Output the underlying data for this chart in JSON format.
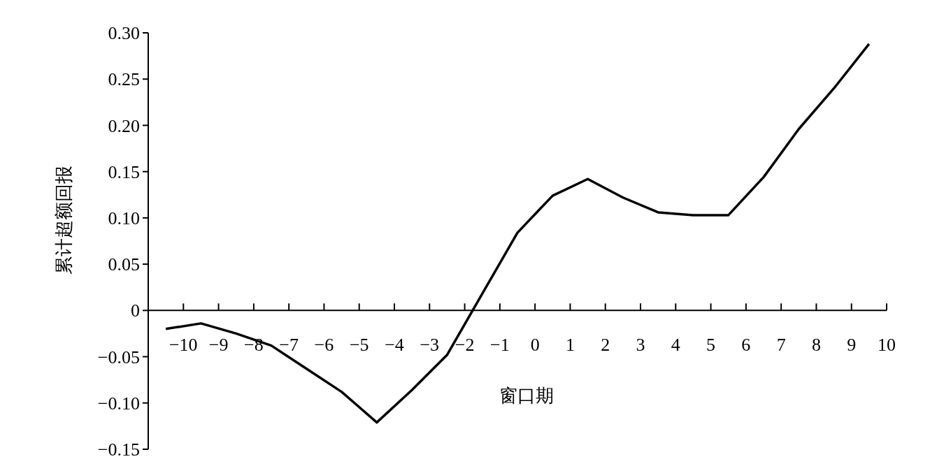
{
  "chart_data": {
    "type": "line",
    "xlabel": "窗口期",
    "ylabel": "累计超额回报",
    "x": [
      -10.5,
      -9.5,
      -8.5,
      -7.5,
      -6.5,
      -5.5,
      -4.5,
      -3.5,
      -2.5,
      -1.5,
      -0.5,
      0.5,
      1.5,
      2.5,
      3.5,
      4.5,
      5.5,
      6.5,
      7.5,
      8.5,
      9.5
    ],
    "series": [
      {
        "color": "#000000",
        "values": [
          -0.02,
          -0.014,
          -0.025,
          -0.038,
          -0.063,
          -0.088,
          -0.121,
          -0.086,
          -0.048,
          0.018,
          0.084,
          0.124,
          0.142,
          0.122,
          0.106,
          0.103,
          0.103,
          0.144,
          0.196,
          0.24,
          0.288
        ]
      }
    ],
    "xlim": [
      -11,
      10
    ],
    "xticks": [
      {
        "value": -10,
        "label": "−10"
      },
      {
        "value": -9,
        "label": "−9"
      },
      {
        "value": -8,
        "label": "−8"
      },
      {
        "value": -7,
        "label": "−7"
      },
      {
        "value": -6,
        "label": "−6"
      },
      {
        "value": -5,
        "label": "−5"
      },
      {
        "value": -4,
        "label": "−4"
      },
      {
        "value": -3,
        "label": "−3"
      },
      {
        "value": -2,
        "label": "−2"
      },
      {
        "value": -1,
        "label": "−1"
      },
      0,
      1,
      2,
      3,
      4,
      5,
      6,
      7,
      8,
      9,
      10
    ],
    "ylim": [
      -0.15,
      0.3
    ],
    "yticks": [
      {
        "value": -0.15,
        "label": "−0.15"
      },
      {
        "value": -0.1,
        "label": "−0.10"
      },
      {
        "value": -0.05,
        "label": "−0.05"
      },
      {
        "value": 0,
        "label": "0"
      },
      {
        "value": 0.05,
        "label": "0.05"
      },
      {
        "value": 0.1,
        "label": "0.10"
      },
      {
        "value": 0.15,
        "label": "0.15"
      },
      {
        "value": 0.2,
        "label": "0.20"
      },
      {
        "value": 0.25,
        "label": "0.25"
      },
      {
        "value": 0.3,
        "label": "0.30"
      }
    ],
    "grid": false,
    "marker": "none",
    "line_style": "solid"
  }
}
